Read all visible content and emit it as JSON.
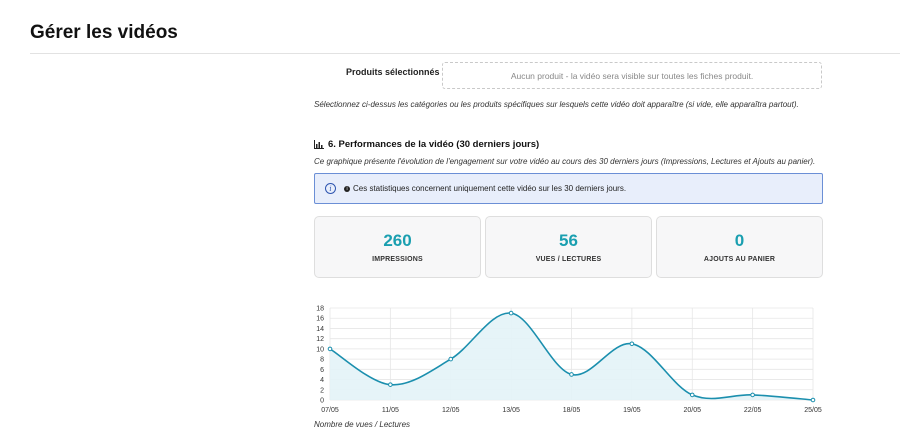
{
  "page": {
    "title": "Gérer les vidéos"
  },
  "products": {
    "label": "Produits sélectionnés",
    "empty_text": "Aucun produit - la vidéo sera visible sur toutes les fiches produit.",
    "help": "Sélectionnez ci-dessus les catégories ou les produits spécifiques sur lesquels cette vidéo doit apparaître (si vide, elle apparaîtra partout)."
  },
  "performance": {
    "title": "6. Performances de la vidéo (30 derniers jours)",
    "icon": "bar-chart-icon",
    "description": "Ce graphique présente l'évolution de l'engagement sur votre vidéo au cours des 30 derniers jours (Impressions, Lectures et Ajouts au panier).",
    "info": "Ces statistiques concernent uniquement cette vidéo sur les 30 derniers jours.",
    "stats": [
      {
        "value": "260",
        "label": "IMPRESSIONS"
      },
      {
        "value": "56",
        "label": "VUES / LECTURES"
      },
      {
        "value": "0",
        "label": "AJOUTS AU PANIER"
      }
    ],
    "caption": "Nombre de vues / Lectures"
  },
  "colors": {
    "accent": "#1a9fb0",
    "line": "#1b8fae",
    "fill": "#e3f3f7",
    "info_bg": "#e8eefb",
    "info_border": "#6b8fd6"
  },
  "chart_data": {
    "type": "area",
    "categories": [
      "07/05",
      "11/05",
      "12/05",
      "13/05",
      "18/05",
      "19/05",
      "20/05",
      "22/05",
      "25/05"
    ],
    "series": [
      {
        "values": [
          10,
          3,
          8,
          17,
          5,
          11,
          1,
          1,
          0
        ]
      }
    ],
    "yticks": [
      0,
      2,
      4,
      6,
      8,
      10,
      12,
      14,
      16,
      18
    ],
    "ylim": [
      0,
      18
    ],
    "grid": true
  }
}
